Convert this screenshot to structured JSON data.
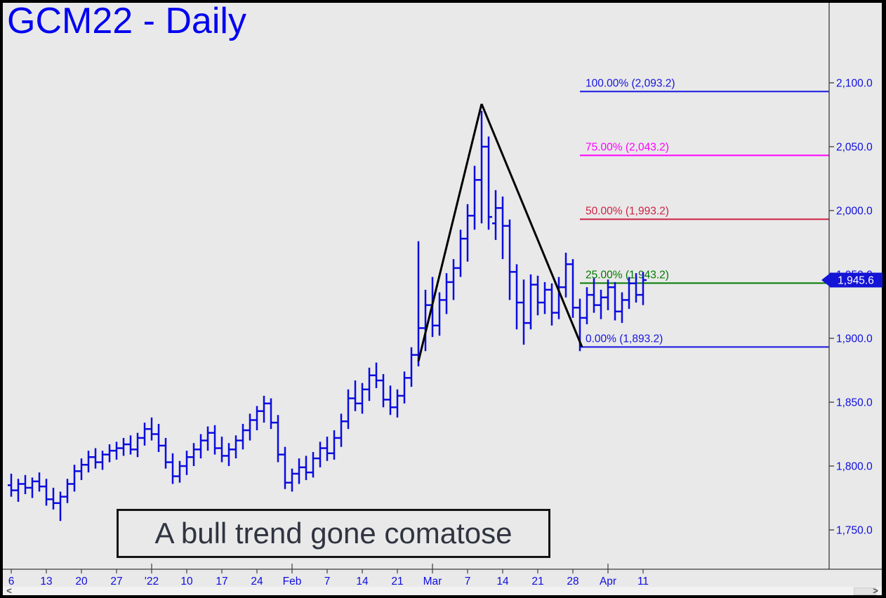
{
  "header": {
    "title": "GCM22 - Daily"
  },
  "colors": {
    "background": "#e9e9e9",
    "bars": "#0b0bdf",
    "axis": "#3c3c3c",
    "axis_labels": "#0d0de0",
    "title": "#0000f2",
    "trendline": "#000000",
    "badge_bg": "#1414d6",
    "badge_text": "#ffffff",
    "annotation_text": "#2f3440",
    "annotation_border": "#141414"
  },
  "scrollbar": {
    "left_arrow": "<",
    "right_arrow": ">"
  },
  "chart_data": {
    "type": "ohlc-bar",
    "symbol": "GCM22",
    "timeframe": "Daily",
    "title": "GCM22 - Daily",
    "annotation": "A bull trend gone comatose",
    "grid": false,
    "legend": false,
    "last_price": {
      "label": "1,945.6",
      "value": 1945.6
    },
    "y_axis": {
      "side": "right",
      "ylim": [
        1720,
        2162
      ],
      "ticks": [
        {
          "value": 2100,
          "label": "2,100.0"
        },
        {
          "value": 2050,
          "label": "2,050.0"
        },
        {
          "value": 2000,
          "label": "2,000.0"
        },
        {
          "value": 1950,
          "label": "1,950.0"
        },
        {
          "value": 1900,
          "label": "1,900.0"
        },
        {
          "value": 1850,
          "label": "1,850.0"
        },
        {
          "value": 1800,
          "label": "1,800.0"
        },
        {
          "value": 1750,
          "label": "1,750.0"
        }
      ]
    },
    "x_axis": {
      "ticks": [
        {
          "label": "6",
          "bar": 0,
          "major": false
        },
        {
          "label": "13",
          "bar": 5,
          "major": false
        },
        {
          "label": "20",
          "bar": 10,
          "major": false
        },
        {
          "label": "27",
          "bar": 15,
          "major": false
        },
        {
          "label": "'22",
          "bar": 20,
          "major": true
        },
        {
          "label": "10",
          "bar": 25,
          "major": false
        },
        {
          "label": "17",
          "bar": 30,
          "major": false
        },
        {
          "label": "24",
          "bar": 35,
          "major": false
        },
        {
          "label": "Feb",
          "bar": 40,
          "major": true
        },
        {
          "label": "7",
          "bar": 45,
          "major": false
        },
        {
          "label": "14",
          "bar": 50,
          "major": false
        },
        {
          "label": "21",
          "bar": 55,
          "major": false
        },
        {
          "label": "Mar",
          "bar": 60,
          "major": true
        },
        {
          "label": "7",
          "bar": 65,
          "major": false
        },
        {
          "label": "14",
          "bar": 70,
          "major": false
        },
        {
          "label": "21",
          "bar": 75,
          "major": false
        },
        {
          "label": "28",
          "bar": 80,
          "major": false
        },
        {
          "label": "Apr",
          "bar": 85,
          "major": true
        },
        {
          "label": "11",
          "bar": 90,
          "major": false
        }
      ]
    },
    "fib_levels": [
      {
        "pct": 100,
        "label": "100.00% (2,093.2)",
        "value": 2093.2,
        "color": "#1414e0"
      },
      {
        "pct": 75,
        "label": "75.00% (2,043.2)",
        "value": 2043.2,
        "color": "#ff00ff"
      },
      {
        "pct": 50,
        "label": "50.00% (1,993.2)",
        "value": 1993.2,
        "color": "#cc2244"
      },
      {
        "pct": 25,
        "label": "25.00% (1,943.2)",
        "value": 1943.2,
        "color": "#007a00"
      },
      {
        "pct": 0,
        "label": "0.00% (1,893.2)",
        "value": 1893.2,
        "color": "#1414e0"
      }
    ],
    "fib_start_bar": 81,
    "trendlines": [
      {
        "from": {
          "bar": 58,
          "price": 1882
        },
        "to": {
          "bar": 67,
          "price": 2083.5
        }
      },
      {
        "from": {
          "bar": 67,
          "price": 2083.5
        },
        "to": {
          "bar": 81.3,
          "price": 1893.2
        }
      }
    ],
    "bars_format": "[open, high, low, close]",
    "bars": [
      [
        1785,
        1794,
        1776,
        1781
      ],
      [
        1781,
        1790,
        1772,
        1786
      ],
      [
        1786,
        1793,
        1778,
        1783
      ],
      [
        1783,
        1791,
        1775,
        1788
      ],
      [
        1788,
        1795,
        1780,
        1784
      ],
      [
        1784,
        1790,
        1769,
        1774
      ],
      [
        1774,
        1783,
        1766,
        1771
      ],
      [
        1771,
        1780,
        1757,
        1776
      ],
      [
        1776,
        1790,
        1771,
        1786
      ],
      [
        1786,
        1801,
        1780,
        1796
      ],
      [
        1796,
        1806,
        1789,
        1801
      ],
      [
        1801,
        1812,
        1795,
        1807
      ],
      [
        1807,
        1814,
        1798,
        1803
      ],
      [
        1803,
        1812,
        1797,
        1809
      ],
      [
        1809,
        1817,
        1803,
        1812
      ],
      [
        1812,
        1819,
        1805,
        1814
      ],
      [
        1814,
        1822,
        1808,
        1817
      ],
      [
        1817,
        1824,
        1809,
        1813
      ],
      [
        1813,
        1826,
        1807,
        1822
      ],
      [
        1822,
        1834,
        1816,
        1829
      ],
      [
        1829,
        1838,
        1820,
        1825
      ],
      [
        1825,
        1833,
        1811,
        1816
      ],
      [
        1816,
        1822,
        1798,
        1803
      ],
      [
        1803,
        1810,
        1786,
        1792
      ],
      [
        1792,
        1804,
        1787,
        1800
      ],
      [
        1800,
        1812,
        1793,
        1807
      ],
      [
        1807,
        1818,
        1800,
        1813
      ],
      [
        1813,
        1825,
        1806,
        1820
      ],
      [
        1820,
        1831,
        1812,
        1826
      ],
      [
        1826,
        1832,
        1809,
        1814
      ],
      [
        1814,
        1823,
        1803,
        1808
      ],
      [
        1808,
        1818,
        1800,
        1813
      ],
      [
        1813,
        1824,
        1806,
        1820
      ],
      [
        1820,
        1833,
        1813,
        1828
      ],
      [
        1828,
        1841,
        1820,
        1836
      ],
      [
        1836,
        1847,
        1828,
        1843
      ],
      [
        1843,
        1855,
        1834,
        1849
      ],
      [
        1849,
        1853,
        1829,
        1834
      ],
      [
        1834,
        1840,
        1803,
        1809
      ],
      [
        1809,
        1815,
        1782,
        1787
      ],
      [
        1787,
        1798,
        1780,
        1794
      ],
      [
        1794,
        1806,
        1786,
        1799
      ],
      [
        1799,
        1808,
        1789,
        1795
      ],
      [
        1795,
        1811,
        1791,
        1806
      ],
      [
        1806,
        1819,
        1799,
        1814
      ],
      [
        1814,
        1823,
        1804,
        1810
      ],
      [
        1810,
        1828,
        1805,
        1822
      ],
      [
        1822,
        1841,
        1815,
        1835
      ],
      [
        1835,
        1860,
        1829,
        1853
      ],
      [
        1853,
        1867,
        1843,
        1849
      ],
      [
        1849,
        1865,
        1841,
        1860
      ],
      [
        1860,
        1877,
        1851,
        1871
      ],
      [
        1871,
        1881,
        1861,
        1867
      ],
      [
        1867,
        1872,
        1846,
        1852
      ],
      [
        1852,
        1863,
        1840,
        1846
      ],
      [
        1846,
        1860,
        1838,
        1855
      ],
      [
        1855,
        1874,
        1849,
        1869
      ],
      [
        1869,
        1893,
        1862,
        1887
      ],
      [
        1887,
        1976,
        1878,
        1908
      ],
      [
        1908,
        1938,
        1890,
        1926
      ],
      [
        1926,
        1948,
        1901,
        1910
      ],
      [
        1910,
        1936,
        1902,
        1930
      ],
      [
        1930,
        1951,
        1919,
        1944
      ],
      [
        1944,
        1962,
        1930,
        1955
      ],
      [
        1955,
        1985,
        1948,
        1978
      ],
      [
        1978,
        2005,
        1960,
        1996
      ],
      [
        1996,
        2035,
        1985,
        2024
      ],
      [
        2024,
        2078,
        1990,
        2050
      ],
      [
        2050,
        2058,
        1985,
        1995
      ],
      [
        1990,
        2016,
        1977,
        2002
      ],
      [
        2002,
        2011,
        1962,
        1988
      ],
      [
        1988,
        1993,
        1930,
        1952
      ],
      [
        1952,
        1958,
        1907,
        1928
      ],
      [
        1928,
        1946,
        1895,
        1912
      ],
      [
        1912,
        1950,
        1907,
        1942
      ],
      [
        1942,
        1949,
        1918,
        1928
      ],
      [
        1928,
        1944,
        1919,
        1938
      ],
      [
        1938,
        1943,
        1910,
        1920
      ],
      [
        1920,
        1948,
        1915,
        1940
      ],
      [
        1940,
        1967,
        1932,
        1958
      ],
      [
        1958,
        1962,
        1916,
        1924
      ],
      [
        1924,
        1931,
        1890,
        1916
      ],
      [
        1916,
        1940,
        1911,
        1934
      ],
      [
        1934,
        1947,
        1920,
        1926
      ],
      [
        1926,
        1938,
        1915,
        1932
      ],
      [
        1932,
        1946,
        1922,
        1940
      ],
      [
        1940,
        1944,
        1914,
        1921
      ],
      [
        1921,
        1936,
        1912,
        1930
      ],
      [
        1930,
        1948,
        1923,
        1943
      ],
      [
        1943,
        1951,
        1928,
        1934
      ],
      [
        1934,
        1952,
        1926,
        1945.6
      ]
    ]
  }
}
